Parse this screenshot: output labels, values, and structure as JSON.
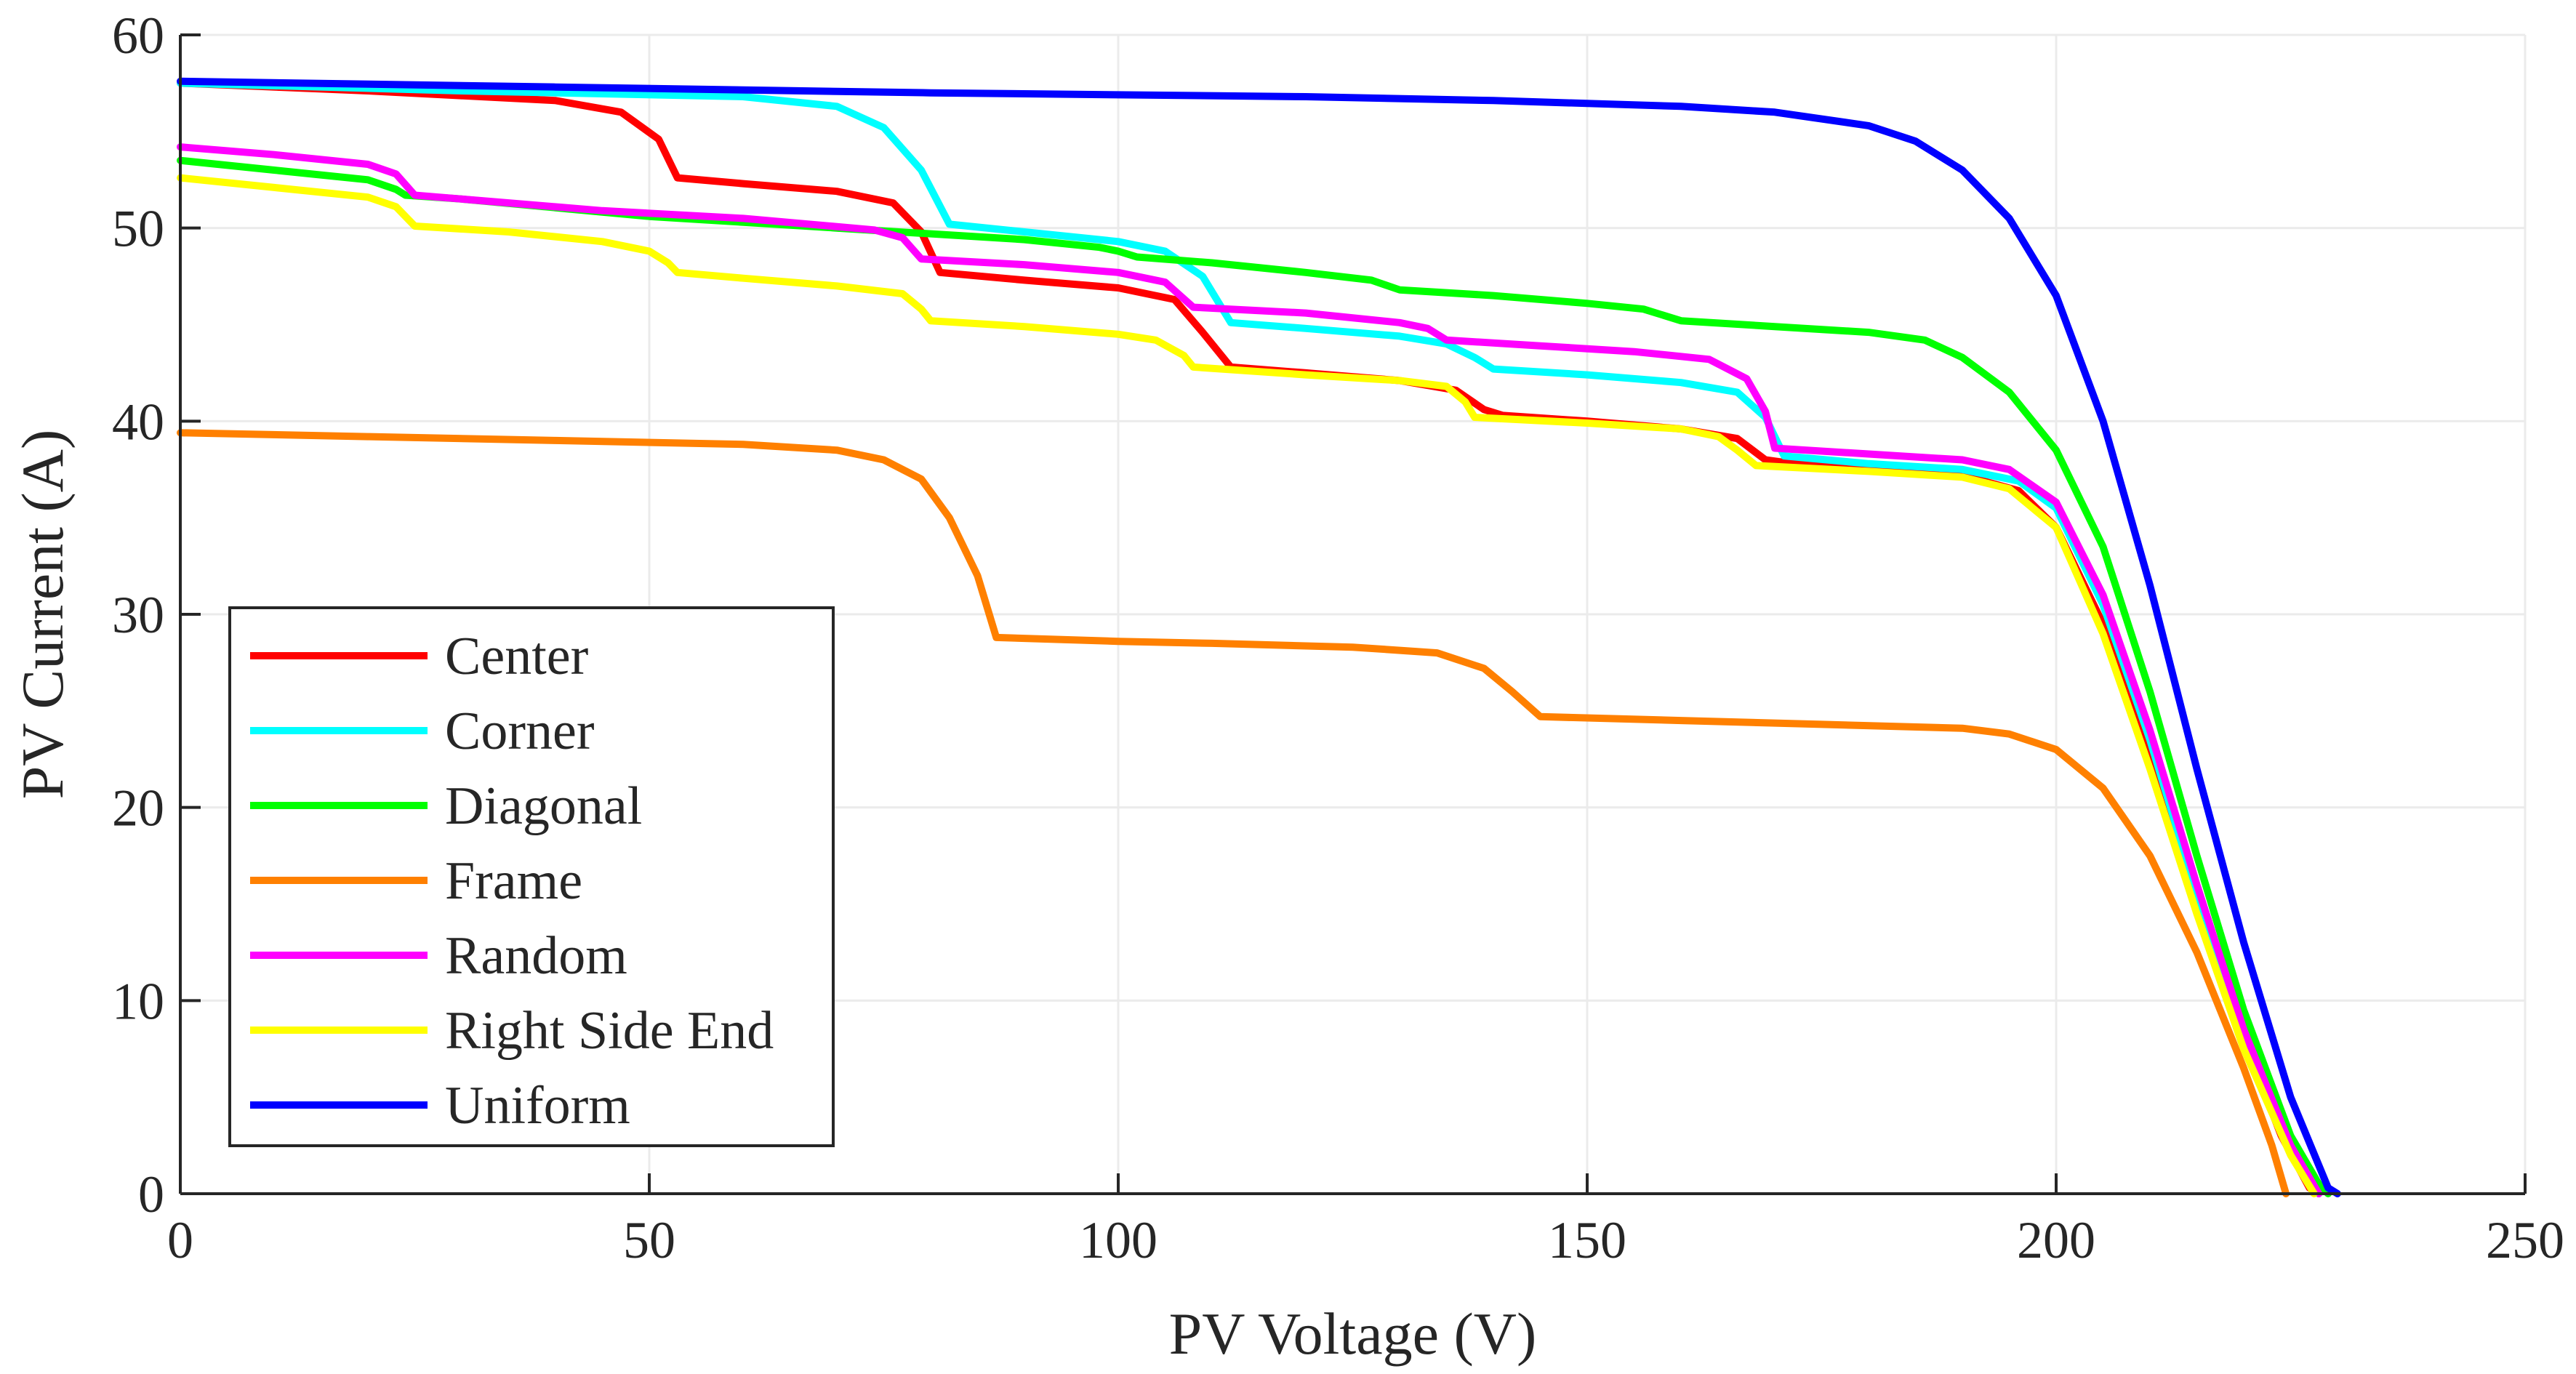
{
  "chart_data": {
    "type": "line",
    "title": "",
    "xlabel": "PV Voltage (V)",
    "ylabel": "PV Current (A)",
    "xlim": [
      0,
      250
    ],
    "ylim": [
      0,
      60
    ],
    "xticks": [
      0,
      50,
      100,
      150,
      200,
      250
    ],
    "yticks": [
      0,
      10,
      20,
      30,
      40,
      50,
      60
    ],
    "xtick_labels": [
      "0",
      "50",
      "100",
      "150",
      "200",
      "250"
    ],
    "ytick_labels": [
      "0",
      "10",
      "20",
      "30",
      "40",
      "50",
      "60"
    ],
    "grid": true,
    "legend_position": "bottom-left",
    "series": [
      {
        "name": "Center",
        "color": "#ff0000",
        "points": [
          [
            0,
            57.5
          ],
          [
            20,
            57.1
          ],
          [
            40,
            56.6
          ],
          [
            47,
            56.0
          ],
          [
            51,
            54.6
          ],
          [
            53,
            52.6
          ],
          [
            60,
            52.3
          ],
          [
            70,
            51.9
          ],
          [
            76,
            51.3
          ],
          [
            79,
            49.8
          ],
          [
            81,
            47.7
          ],
          [
            90,
            47.3
          ],
          [
            100,
            46.9
          ],
          [
            106,
            46.3
          ],
          [
            109,
            44.6
          ],
          [
            112,
            42.8
          ],
          [
            120,
            42.5
          ],
          [
            130,
            42.1
          ],
          [
            136,
            41.6
          ],
          [
            139,
            40.6
          ],
          [
            141,
            40.3
          ],
          [
            150,
            40.0
          ],
          [
            160,
            39.6
          ],
          [
            166,
            39.1
          ],
          [
            169,
            38.0
          ],
          [
            172,
            37.8
          ],
          [
            180,
            37.6
          ],
          [
            190,
            37.2
          ],
          [
            196,
            36.4
          ],
          [
            200,
            34.5
          ],
          [
            205,
            29.5
          ],
          [
            210,
            22.5
          ],
          [
            215,
            15.0
          ],
          [
            220,
            8.0
          ],
          [
            224,
            3.0
          ],
          [
            227,
            0.3
          ],
          [
            228,
            0
          ]
        ]
      },
      {
        "name": "Corner",
        "color": "#00ffff",
        "points": [
          [
            0,
            57.5
          ],
          [
            30,
            57.1
          ],
          [
            60,
            56.8
          ],
          [
            70,
            56.3
          ],
          [
            75,
            55.2
          ],
          [
            79,
            53.0
          ],
          [
            82,
            50.2
          ],
          [
            90,
            49.8
          ],
          [
            100,
            49.3
          ],
          [
            105,
            48.8
          ],
          [
            109,
            47.5
          ],
          [
            112,
            45.1
          ],
          [
            120,
            44.8
          ],
          [
            130,
            44.4
          ],
          [
            135,
            44.0
          ],
          [
            138,
            43.3
          ],
          [
            140,
            42.7
          ],
          [
            150,
            42.4
          ],
          [
            160,
            42.0
          ],
          [
            166,
            41.5
          ],
          [
            169,
            40.2
          ],
          [
            171,
            38.2
          ],
          [
            180,
            37.8
          ],
          [
            190,
            37.5
          ],
          [
            196,
            36.9
          ],
          [
            200,
            35.5
          ],
          [
            205,
            30.5
          ],
          [
            210,
            23.5
          ],
          [
            215,
            15.5
          ],
          [
            220,
            8.3
          ],
          [
            225,
            2.5
          ],
          [
            228,
            0
          ]
        ]
      },
      {
        "name": "Diagonal",
        "color": "#00ff00",
        "points": [
          [
            0,
            53.5
          ],
          [
            10,
            53.0
          ],
          [
            20,
            52.5
          ],
          [
            23,
            52.0
          ],
          [
            24,
            51.7
          ],
          [
            30,
            51.5
          ],
          [
            50,
            50.6
          ],
          [
            70,
            50.0
          ],
          [
            90,
            49.4
          ],
          [
            98,
            49.0
          ],
          [
            100,
            48.8
          ],
          [
            102,
            48.5
          ],
          [
            110,
            48.2
          ],
          [
            120,
            47.7
          ],
          [
            127,
            47.3
          ],
          [
            130,
            46.8
          ],
          [
            140,
            46.5
          ],
          [
            150,
            46.1
          ],
          [
            156,
            45.8
          ],
          [
            160,
            45.2
          ],
          [
            170,
            44.9
          ],
          [
            180,
            44.6
          ],
          [
            186,
            44.2
          ],
          [
            190,
            43.3
          ],
          [
            195,
            41.5
          ],
          [
            200,
            38.5
          ],
          [
            205,
            33.5
          ],
          [
            210,
            26.0
          ],
          [
            215,
            17.5
          ],
          [
            220,
            9.5
          ],
          [
            225,
            3.0
          ],
          [
            228,
            0.5
          ],
          [
            229,
            0
          ]
        ]
      },
      {
        "name": "Frame",
        "color": "#ff8000",
        "points": [
          [
            0,
            39.4
          ],
          [
            20,
            39.2
          ],
          [
            40,
            39.0
          ],
          [
            60,
            38.8
          ],
          [
            70,
            38.5
          ],
          [
            75,
            38.0
          ],
          [
            79,
            37.0
          ],
          [
            82,
            35.0
          ],
          [
            85,
            32.0
          ],
          [
            87,
            28.8
          ],
          [
            100,
            28.6
          ],
          [
            110,
            28.5
          ],
          [
            125,
            28.3
          ],
          [
            134,
            28.0
          ],
          [
            139,
            27.2
          ],
          [
            142,
            26.0
          ],
          [
            145,
            24.7
          ],
          [
            160,
            24.5
          ],
          [
            175,
            24.3
          ],
          [
            190,
            24.1
          ],
          [
            195,
            23.8
          ],
          [
            200,
            23.0
          ],
          [
            205,
            21.0
          ],
          [
            210,
            17.5
          ],
          [
            215,
            12.5
          ],
          [
            220,
            6.5
          ],
          [
            223,
            2.5
          ],
          [
            224.5,
            0
          ]
        ]
      },
      {
        "name": "Random",
        "color": "#ff00ff",
        "points": [
          [
            0,
            54.2
          ],
          [
            10,
            53.8
          ],
          [
            20,
            53.3
          ],
          [
            23,
            52.8
          ],
          [
            25,
            51.7
          ],
          [
            35,
            51.3
          ],
          [
            45,
            50.9
          ],
          [
            60,
            50.5
          ],
          [
            74,
            49.9
          ],
          [
            77,
            49.5
          ],
          [
            79,
            48.4
          ],
          [
            90,
            48.1
          ],
          [
            100,
            47.7
          ],
          [
            105,
            47.2
          ],
          [
            108,
            45.9
          ],
          [
            120,
            45.6
          ],
          [
            130,
            45.1
          ],
          [
            133,
            44.8
          ],
          [
            135,
            44.2
          ],
          [
            145,
            43.9
          ],
          [
            155,
            43.6
          ],
          [
            163,
            43.2
          ],
          [
            167,
            42.2
          ],
          [
            169,
            40.5
          ],
          [
            170,
            38.6
          ],
          [
            180,
            38.3
          ],
          [
            190,
            38.0
          ],
          [
            195,
            37.5
          ],
          [
            200,
            35.8
          ],
          [
            205,
            31.0
          ],
          [
            210,
            24.0
          ],
          [
            215,
            16.0
          ],
          [
            220,
            8.5
          ],
          [
            225,
            2.5
          ],
          [
            228,
            0
          ]
        ]
      },
      {
        "name": "Right Side End",
        "color": "#ffff00",
        "points": [
          [
            0,
            52.6
          ],
          [
            10,
            52.1
          ],
          [
            20,
            51.6
          ],
          [
            23,
            51.1
          ],
          [
            25,
            50.1
          ],
          [
            35,
            49.8
          ],
          [
            45,
            49.3
          ],
          [
            50,
            48.8
          ],
          [
            52,
            48.2
          ],
          [
            53,
            47.7
          ],
          [
            60,
            47.4
          ],
          [
            70,
            47.0
          ],
          [
            77,
            46.6
          ],
          [
            79,
            45.8
          ],
          [
            80,
            45.2
          ],
          [
            90,
            44.9
          ],
          [
            100,
            44.5
          ],
          [
            104,
            44.2
          ],
          [
            107,
            43.4
          ],
          [
            108,
            42.8
          ],
          [
            120,
            42.4
          ],
          [
            130,
            42.1
          ],
          [
            135,
            41.8
          ],
          [
            137,
            41.0
          ],
          [
            138,
            40.2
          ],
          [
            150,
            39.9
          ],
          [
            160,
            39.6
          ],
          [
            164,
            39.2
          ],
          [
            166,
            38.5
          ],
          [
            168,
            37.7
          ],
          [
            180,
            37.4
          ],
          [
            190,
            37.1
          ],
          [
            195,
            36.5
          ],
          [
            200,
            34.5
          ],
          [
            205,
            29.0
          ],
          [
            210,
            22.0
          ],
          [
            215,
            14.5
          ],
          [
            220,
            7.5
          ],
          [
            225,
            2.0
          ],
          [
            227.5,
            0
          ]
        ]
      },
      {
        "name": "Uniform",
        "color": "#0000ff",
        "points": [
          [
            0,
            57.6
          ],
          [
            40,
            57.3
          ],
          [
            80,
            57.0
          ],
          [
            120,
            56.8
          ],
          [
            140,
            56.6
          ],
          [
            160,
            56.3
          ],
          [
            170,
            56.0
          ],
          [
            180,
            55.3
          ],
          [
            185,
            54.5
          ],
          [
            190,
            53.0
          ],
          [
            195,
            50.5
          ],
          [
            200,
            46.5
          ],
          [
            205,
            40.0
          ],
          [
            210,
            31.5
          ],
          [
            215,
            22.0
          ],
          [
            220,
            13.0
          ],
          [
            225,
            5.0
          ],
          [
            229,
            0.3
          ],
          [
            230,
            0
          ]
        ]
      }
    ]
  }
}
